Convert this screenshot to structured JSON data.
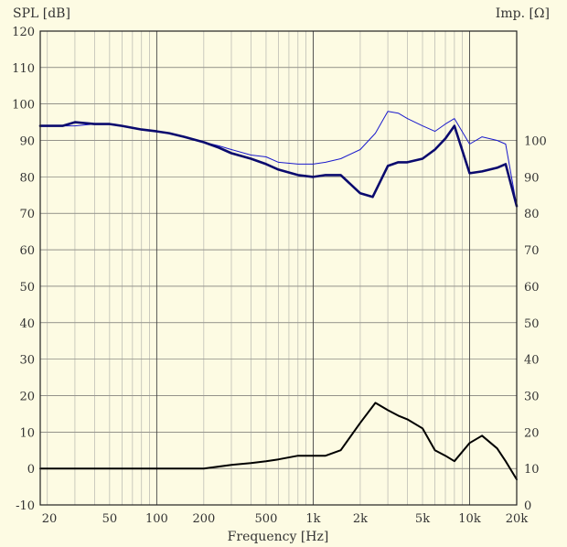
{
  "chart_data": {
    "type": "line",
    "ylabel": "SPL [dB]",
    "ylabel_right": "Imp. [Ω]",
    "xlabel": "Frequency [Hz]",
    "xscale": "log",
    "xlim": [
      18,
      20000
    ],
    "ylim": [
      -10,
      120
    ],
    "y2lim": [
      0,
      130
    ],
    "grid": true,
    "x_ticks": [
      20,
      50,
      100,
      200,
      500,
      1000,
      2000,
      5000,
      10000,
      20000
    ],
    "x_tick_labels": [
      "20",
      "50",
      "100",
      "200",
      "500",
      "1k",
      "2k",
      "5k",
      "10k",
      "20k"
    ],
    "y_ticks": [
      -10,
      0,
      10,
      20,
      30,
      40,
      50,
      60,
      70,
      80,
      90,
      100,
      110,
      120
    ],
    "y2_ticks": [
      0,
      10,
      20,
      30,
      40,
      50,
      60,
      70,
      80,
      90,
      100
    ],
    "series": [
      {
        "color": "#1a1acc",
        "width": 1,
        "axis": "left",
        "x": [
          18,
          25,
          30,
          40,
          50,
          60,
          80,
          100,
          120,
          150,
          200,
          250,
          300,
          400,
          500,
          600,
          800,
          1000,
          1200,
          1500,
          2000,
          2500,
          3000,
          3500,
          4000,
          5000,
          6000,
          7000,
          8000,
          10000,
          12000,
          15000,
          17000,
          20000
        ],
        "y": [
          94,
          94,
          94,
          94.5,
          94.5,
          94,
          93,
          92.5,
          92,
          91,
          89.5,
          88.5,
          87.5,
          86,
          85.5,
          84,
          83.5,
          83.5,
          84,
          85,
          87.5,
          92,
          98,
          97.5,
          96,
          94,
          92.5,
          94.5,
          96,
          89,
          91,
          90,
          89,
          72
        ]
      },
      {
        "color": "#0a0a6e",
        "width": 2.6,
        "axis": "left",
        "x": [
          18,
          25,
          30,
          40,
          50,
          60,
          80,
          100,
          120,
          150,
          200,
          250,
          300,
          400,
          500,
          600,
          800,
          1000,
          1200,
          1500,
          2000,
          2400,
          3000,
          3500,
          4000,
          5000,
          6000,
          7000,
          8000,
          10000,
          12000,
          15000,
          17000,
          20000
        ],
        "y": [
          94,
          94,
          95,
          94.5,
          94.5,
          94,
          93,
          92.5,
          92,
          91,
          89.5,
          88,
          86.5,
          85,
          83.5,
          82,
          80.5,
          80,
          80.5,
          80.5,
          75.5,
          74.5,
          83,
          84,
          84,
          85,
          87.5,
          90.5,
          94,
          81,
          81.5,
          82.5,
          83.5,
          72
        ]
      },
      {
        "color": "#000000",
        "width": 2,
        "axis": "right",
        "x": [
          18,
          50,
          100,
          200,
          300,
          400,
          500,
          600,
          800,
          1000,
          1200,
          1500,
          2000,
          2500,
          3000,
          3500,
          4000,
          5000,
          6000,
          7000,
          8000,
          10000,
          12000,
          15000,
          17000,
          20000
        ],
        "y": [
          10,
          10,
          10,
          10,
          11,
          11.5,
          12,
          12.5,
          13.5,
          13.5,
          13.5,
          15,
          22.5,
          28,
          26,
          24.5,
          23.5,
          21,
          15,
          13.5,
          12,
          17,
          19,
          15.5,
          12,
          7
        ]
      }
    ]
  }
}
